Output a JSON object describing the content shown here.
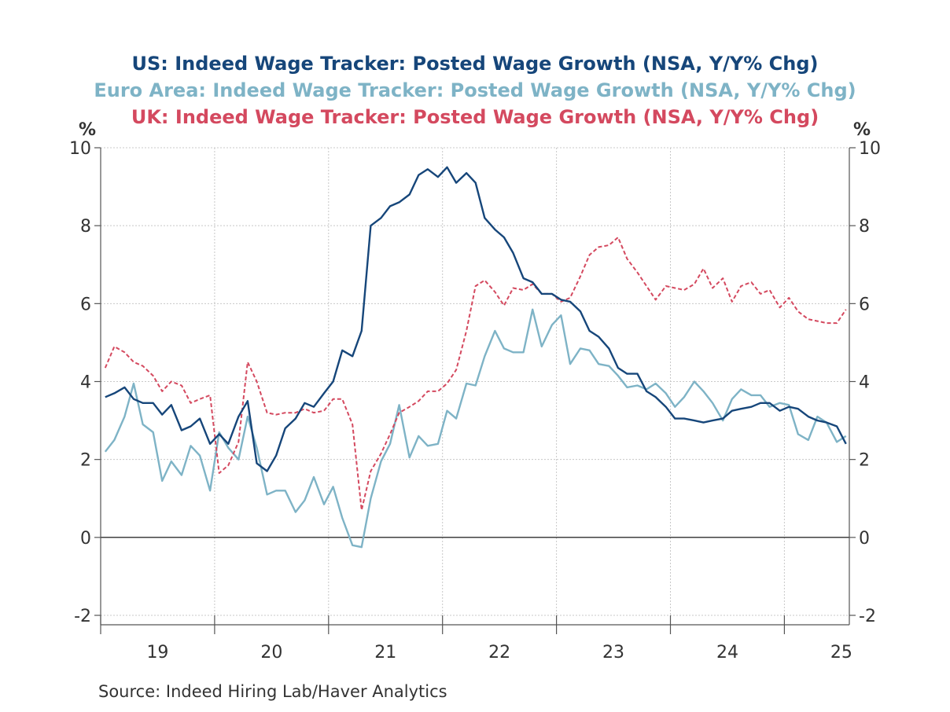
{
  "chart_data": {
    "type": "line",
    "titles": [
      {
        "text": "US: Indeed Wage Tracker: Posted Wage Growth (NSA, Y/Y% Chg)",
        "color": "#16467a"
      },
      {
        "text": "Euro Area: Indeed Wage Tracker: Posted Wage Growth (NSA, Y/Y% Chg)",
        "color": "#7eb3c6"
      },
      {
        "text": "UK: Indeed Wage Tracker: Posted Wage Growth (NSA, Y/Y% Chg)",
        "color": "#d4495f"
      }
    ],
    "ylabel_left": "%",
    "ylabel_right": "%",
    "ylim": [
      -2,
      10
    ],
    "yticks": [
      -2,
      0,
      2,
      4,
      6,
      8,
      10
    ],
    "xlim": [
      2018.5,
      2025.07
    ],
    "xticks": [
      {
        "label": "19",
        "at": 2019.0
      },
      {
        "label": "20",
        "at": 2020.0
      },
      {
        "label": "21",
        "at": 2021.0
      },
      {
        "label": "22",
        "at": 2022.0
      },
      {
        "label": "23",
        "at": 2023.0
      },
      {
        "label": "24",
        "at": 2024.0
      },
      {
        "label": "25",
        "at": 2025.0
      }
    ],
    "grid": true,
    "zero_line": true,
    "series": [
      {
        "name": "US",
        "color": "#16467a",
        "dashed": false,
        "x": [
          2018.54,
          2018.62,
          2018.71,
          2018.79,
          2018.87,
          2018.96,
          2019.04,
          2019.12,
          2019.21,
          2019.29,
          2019.37,
          2019.46,
          2019.54,
          2019.62,
          2019.71,
          2019.79,
          2019.87,
          2019.96,
          2020.04,
          2020.12,
          2020.21,
          2020.29,
          2020.37,
          2020.46,
          2020.54,
          2020.62,
          2020.71,
          2020.79,
          2020.87,
          2020.96,
          2021.04,
          2021.12,
          2021.21,
          2021.29,
          2021.37,
          2021.46,
          2021.54,
          2021.62,
          2021.71,
          2021.79,
          2021.87,
          2021.96,
          2022.04,
          2022.12,
          2022.21,
          2022.29,
          2022.37,
          2022.46,
          2022.54,
          2022.62,
          2022.71,
          2022.79,
          2022.87,
          2022.96,
          2023.04,
          2023.12,
          2023.21,
          2023.29,
          2023.37,
          2023.46,
          2023.54,
          2023.62,
          2023.71,
          2023.79,
          2023.87,
          2023.96,
          2024.04,
          2024.12,
          2024.21,
          2024.29,
          2024.37,
          2024.46,
          2024.54,
          2024.62,
          2024.71,
          2024.79,
          2024.87,
          2024.96,
          2025.04
        ],
        "values": [
          3.6,
          3.7,
          3.85,
          3.55,
          3.45,
          3.45,
          3.15,
          3.4,
          2.75,
          2.85,
          3.05,
          2.4,
          2.65,
          2.4,
          3.1,
          3.5,
          1.9,
          1.7,
          2.1,
          2.8,
          3.05,
          3.45,
          3.35,
          3.7,
          4.0,
          4.8,
          4.65,
          5.3,
          8.0,
          8.2,
          8.5,
          8.6,
          8.8,
          9.3,
          9.45,
          9.25,
          9.5,
          9.1,
          9.35,
          9.1,
          8.2,
          7.9,
          7.7,
          7.3,
          6.65,
          6.55,
          6.25,
          6.25,
          6.1,
          6.05,
          5.8,
          5.3,
          5.15,
          4.85,
          4.35,
          4.2,
          4.2,
          3.75,
          3.6,
          3.35,
          3.05,
          3.05,
          3.0,
          2.95,
          3.0,
          3.05,
          3.25,
          3.3,
          3.35,
          3.45,
          3.45,
          3.25,
          3.35,
          3.3,
          3.1,
          3.0,
          2.95,
          2.85,
          2.4
        ]
      },
      {
        "name": "Euro Area",
        "color": "#7eb3c6",
        "dashed": false,
        "x": [
          2018.54,
          2018.62,
          2018.71,
          2018.79,
          2018.87,
          2018.96,
          2019.04,
          2019.12,
          2019.21,
          2019.29,
          2019.37,
          2019.46,
          2019.54,
          2019.62,
          2019.71,
          2019.79,
          2019.87,
          2019.96,
          2020.04,
          2020.12,
          2020.21,
          2020.29,
          2020.37,
          2020.46,
          2020.54,
          2020.62,
          2020.71,
          2020.79,
          2020.87,
          2020.96,
          2021.04,
          2021.12,
          2021.21,
          2021.29,
          2021.37,
          2021.46,
          2021.54,
          2021.62,
          2021.71,
          2021.79,
          2021.87,
          2021.96,
          2022.04,
          2022.12,
          2022.21,
          2022.29,
          2022.37,
          2022.46,
          2022.54,
          2022.62,
          2022.71,
          2022.79,
          2022.87,
          2022.96,
          2023.04,
          2023.12,
          2023.21,
          2023.29,
          2023.37,
          2023.46,
          2023.54,
          2023.62,
          2023.71,
          2023.79,
          2023.87,
          2023.96,
          2024.04,
          2024.12,
          2024.21,
          2024.29,
          2024.37,
          2024.46,
          2024.54,
          2024.62,
          2024.71,
          2024.79,
          2024.87,
          2024.96,
          2025.04
        ],
        "values": [
          2.2,
          2.5,
          3.1,
          3.95,
          2.9,
          2.7,
          1.45,
          1.95,
          1.6,
          2.35,
          2.1,
          1.2,
          2.7,
          2.3,
          2.0,
          3.1,
          2.3,
          1.1,
          1.2,
          1.2,
          0.65,
          0.95,
          1.55,
          0.85,
          1.3,
          0.5,
          -0.2,
          -0.25,
          1.0,
          1.95,
          2.4,
          3.4,
          2.05,
          2.6,
          2.35,
          2.4,
          3.25,
          3.05,
          3.95,
          3.9,
          4.65,
          5.3,
          4.85,
          4.75,
          4.75,
          5.85,
          4.9,
          5.45,
          5.7,
          4.45,
          4.85,
          4.8,
          4.45,
          4.4,
          4.15,
          3.85,
          3.9,
          3.8,
          3.95,
          3.7,
          3.35,
          3.6,
          4.0,
          3.75,
          3.45,
          3.0,
          3.55,
          3.8,
          3.65,
          3.65,
          3.35,
          3.45,
          3.4,
          2.65,
          2.5,
          3.1,
          2.95,
          2.45,
          2.6
        ]
      },
      {
        "name": "UK",
        "color": "#d4495f",
        "dashed": true,
        "x": [
          2018.54,
          2018.62,
          2018.71,
          2018.79,
          2018.87,
          2018.96,
          2019.04,
          2019.12,
          2019.21,
          2019.29,
          2019.37,
          2019.46,
          2019.54,
          2019.62,
          2019.71,
          2019.79,
          2019.87,
          2019.96,
          2020.04,
          2020.12,
          2020.21,
          2020.29,
          2020.37,
          2020.46,
          2020.54,
          2020.62,
          2020.71,
          2020.79,
          2020.87,
          2020.96,
          2021.04,
          2021.12,
          2021.21,
          2021.29,
          2021.37,
          2021.46,
          2021.54,
          2021.62,
          2021.71,
          2021.79,
          2021.87,
          2021.96,
          2022.04,
          2022.12,
          2022.21,
          2022.29,
          2022.37,
          2022.46,
          2022.54,
          2022.62,
          2022.71,
          2022.79,
          2022.87,
          2022.96,
          2023.04,
          2023.12,
          2023.21,
          2023.29,
          2023.37,
          2023.46,
          2023.54,
          2023.62,
          2023.71,
          2023.79,
          2023.87,
          2023.96,
          2024.04,
          2024.12,
          2024.21,
          2024.29,
          2024.37,
          2024.46,
          2024.54,
          2024.62,
          2024.71,
          2024.79,
          2024.87,
          2024.96,
          2025.04
        ],
        "values": [
          4.35,
          4.9,
          4.75,
          4.5,
          4.4,
          4.15,
          3.75,
          4.0,
          3.9,
          3.45,
          3.55,
          3.65,
          1.65,
          1.85,
          2.45,
          4.5,
          4.0,
          3.2,
          3.15,
          3.2,
          3.2,
          3.3,
          3.2,
          3.25,
          3.55,
          3.55,
          2.9,
          0.7,
          1.7,
          2.15,
          2.65,
          3.2,
          3.35,
          3.5,
          3.75,
          3.75,
          3.95,
          4.3,
          5.3,
          6.45,
          6.6,
          6.3,
          5.95,
          6.4,
          6.35,
          6.5,
          6.25,
          6.25,
          6.05,
          6.15,
          6.7,
          7.25,
          7.45,
          7.5,
          7.7,
          7.15,
          6.8,
          6.45,
          6.1,
          6.45,
          6.4,
          6.35,
          6.5,
          6.9,
          6.4,
          6.65,
          6.05,
          6.45,
          6.55,
          6.25,
          6.35,
          5.9,
          6.15,
          5.8,
          5.6,
          5.55,
          5.5,
          5.5,
          5.85
        ]
      }
    ]
  },
  "source": "Source:  Indeed Hiring Lab/Haver Analytics"
}
